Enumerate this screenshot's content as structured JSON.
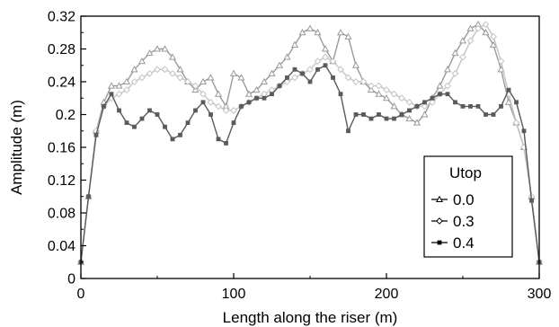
{
  "chart_data": {
    "type": "line",
    "title": "",
    "xlabel": "Length along the riser (m)",
    "ylabel": "Amplitude (m)",
    "xlim": [
      0,
      300
    ],
    "ylim": [
      0,
      0.32
    ],
    "xticks": [
      0,
      100,
      200,
      300
    ],
    "xtick_labels": [
      "0",
      "100",
      "200",
      "300"
    ],
    "yticks": [
      0,
      0.04,
      0.08,
      0.12,
      0.16,
      0.2,
      0.24,
      0.28,
      0.32
    ],
    "ytick_labels": [
      "0",
      "0.04",
      "0.08",
      "0.12",
      "0.16",
      "0.2",
      "0.24",
      "0.28",
      "0.32"
    ],
    "grid": false,
    "legend": {
      "title": "Utop",
      "position": "bottom-right"
    },
    "x": [
      0,
      5,
      10,
      15,
      20,
      25,
      30,
      35,
      40,
      45,
      50,
      55,
      60,
      65,
      70,
      75,
      80,
      85,
      90,
      95,
      100,
      105,
      110,
      115,
      120,
      125,
      130,
      135,
      140,
      145,
      150,
      155,
      160,
      165,
      170,
      175,
      180,
      185,
      190,
      195,
      200,
      205,
      210,
      215,
      220,
      225,
      230,
      235,
      240,
      245,
      250,
      255,
      260,
      265,
      270,
      275,
      280,
      285,
      290,
      295,
      300
    ],
    "series": [
      {
        "name": "0.0",
        "marker": "triangle",
        "color": "#9a9a9a",
        "values": [
          0.02,
          0.1,
          0.18,
          0.215,
          0.235,
          0.235,
          0.24,
          0.255,
          0.265,
          0.275,
          0.28,
          0.28,
          0.27,
          0.255,
          0.24,
          0.23,
          0.24,
          0.245,
          0.225,
          0.21,
          0.25,
          0.245,
          0.225,
          0.23,
          0.24,
          0.25,
          0.26,
          0.27,
          0.285,
          0.3,
          0.305,
          0.3,
          0.28,
          0.265,
          0.3,
          0.295,
          0.26,
          0.24,
          0.23,
          0.225,
          0.22,
          0.21,
          0.2,
          0.195,
          0.19,
          0.2,
          0.22,
          0.235,
          0.255,
          0.275,
          0.29,
          0.305,
          0.31,
          0.3,
          0.285,
          0.255,
          0.215,
          0.19,
          0.16,
          0.1,
          0.02
        ]
      },
      {
        "name": "0.3",
        "marker": "diamond",
        "color": "#c4c4c4",
        "values": [
          0.02,
          0.1,
          0.18,
          0.21,
          0.22,
          0.225,
          0.23,
          0.24,
          0.245,
          0.25,
          0.255,
          0.255,
          0.25,
          0.245,
          0.24,
          0.235,
          0.225,
          0.215,
          0.21,
          0.205,
          0.205,
          0.21,
          0.215,
          0.22,
          0.225,
          0.23,
          0.235,
          0.24,
          0.245,
          0.25,
          0.255,
          0.265,
          0.27,
          0.265,
          0.255,
          0.245,
          0.24,
          0.24,
          0.235,
          0.235,
          0.23,
          0.225,
          0.22,
          0.215,
          0.21,
          0.21,
          0.215,
          0.225,
          0.235,
          0.25,
          0.27,
          0.29,
          0.305,
          0.31,
          0.295,
          0.265,
          0.225,
          0.19,
          0.16,
          0.1,
          0.02
        ]
      },
      {
        "name": "0.4",
        "marker": "square",
        "color": "#5a5a5a",
        "values": [
          0.02,
          0.1,
          0.175,
          0.21,
          0.225,
          0.205,
          0.19,
          0.185,
          0.195,
          0.205,
          0.2,
          0.185,
          0.17,
          0.175,
          0.19,
          0.205,
          0.215,
          0.2,
          0.17,
          0.165,
          0.19,
          0.21,
          0.215,
          0.22,
          0.22,
          0.225,
          0.235,
          0.245,
          0.255,
          0.25,
          0.24,
          0.255,
          0.26,
          0.245,
          0.225,
          0.18,
          0.2,
          0.2,
          0.195,
          0.2,
          0.195,
          0.195,
          0.2,
          0.205,
          0.21,
          0.215,
          0.22,
          0.225,
          0.225,
          0.215,
          0.21,
          0.21,
          0.21,
          0.2,
          0.2,
          0.21,
          0.23,
          0.215,
          0.18,
          0.095,
          0.02
        ]
      }
    ]
  }
}
